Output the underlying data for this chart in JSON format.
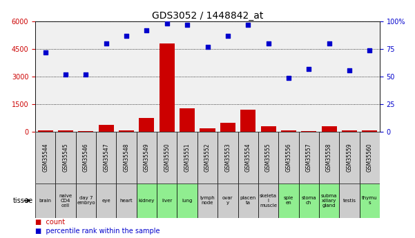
{
  "title": "GDS3052 / 1448842_at",
  "gsm_labels": [
    "GSM35544",
    "GSM35545",
    "GSM35546",
    "GSM35547",
    "GSM35548",
    "GSM35549",
    "GSM35550",
    "GSM35551",
    "GSM35552",
    "GSM35553",
    "GSM35554",
    "GSM35555",
    "GSM35556",
    "GSM35557",
    "GSM35558",
    "GSM35559",
    "GSM35560"
  ],
  "tissue_labels": [
    "brain",
    "naive\nCD4\ncell",
    "day 7\nembryо",
    "eye",
    "heart",
    "kidney",
    "liver",
    "lung",
    "lymph\nnode",
    "ovar\ny",
    "placen\nta",
    "skeleta\nl\nmuscle",
    "sple\nen",
    "stoma\nch",
    "subma\nxillary\ngland",
    "testis",
    "thymu\ns"
  ],
  "tissue_colors": [
    "#cccccc",
    "#cccccc",
    "#cccccc",
    "#cccccc",
    "#cccccc",
    "#90ee90",
    "#90ee90",
    "#90ee90",
    "#cccccc",
    "#cccccc",
    "#cccccc",
    "#cccccc",
    "#90ee90",
    "#90ee90",
    "#90ee90",
    "#cccccc",
    "#90ee90"
  ],
  "count_values": [
    100,
    90,
    50,
    400,
    100,
    750,
    4800,
    1300,
    200,
    500,
    1200,
    300,
    100,
    60,
    300,
    80,
    80
  ],
  "percentile_values": [
    72,
    52,
    52,
    80,
    87,
    92,
    98,
    97,
    77,
    87,
    97,
    80,
    49,
    57,
    80,
    56,
    74
  ],
  "ylim_left": [
    0,
    6000
  ],
  "ylim_right": [
    0,
    100
  ],
  "yticks_left": [
    0,
    1500,
    3000,
    4500,
    6000
  ],
  "ytick_labels_left": [
    "0",
    "1500",
    "3000",
    "4500",
    "6000"
  ],
  "yticks_right": [
    0,
    25,
    50,
    75,
    100
  ],
  "ytick_labels_right": [
    "0",
    "25",
    "50",
    "75",
    "100%"
  ],
  "bar_color": "#cc0000",
  "dot_color": "#0000cc",
  "background_color": "#ffffff",
  "plot_bg_color": "#f0f0f0",
  "grid_color": "#000000",
  "title_fontsize": 10,
  "axis_fontsize": 7,
  "gsm_label_fontsize": 5.5,
  "tissue_fontsize": 5.0
}
